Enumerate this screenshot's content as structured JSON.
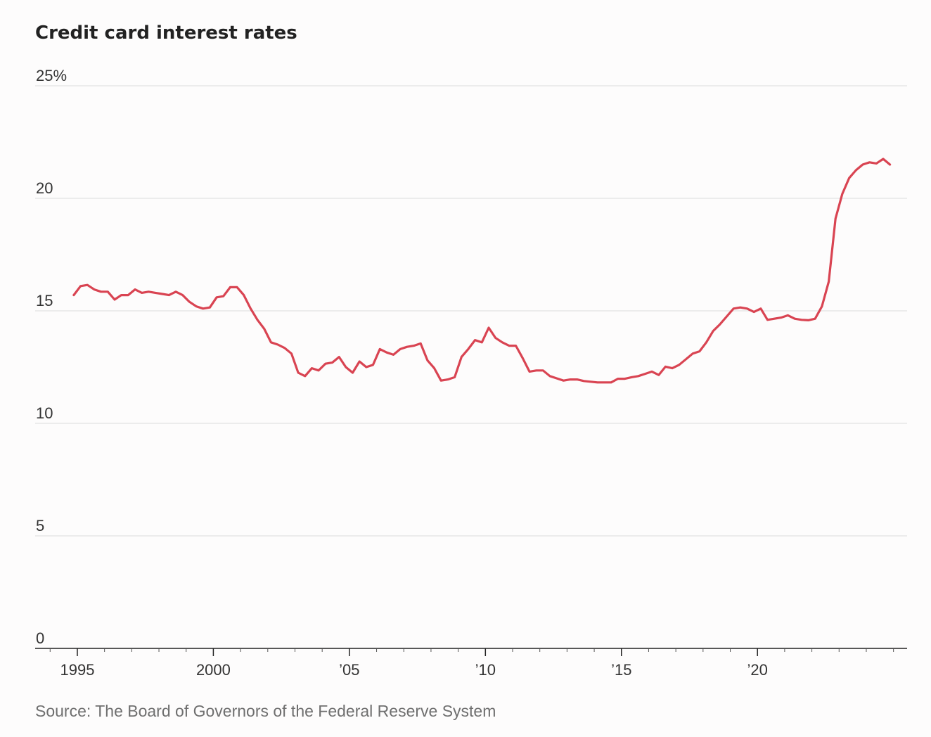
{
  "chart_data": {
    "type": "line",
    "title": "Credit card interest rates",
    "xlabel": "",
    "ylabel": "",
    "ylim": [
      0,
      25
    ],
    "xlim": [
      1993.45,
      2025.5
    ],
    "yticks": [
      {
        "value": 25,
        "label": "25%"
      },
      {
        "value": 20,
        "label": "20"
      },
      {
        "value": 15,
        "label": "15"
      },
      {
        "value": 10,
        "label": "10"
      },
      {
        "value": 5,
        "label": "5"
      },
      {
        "value": 0,
        "label": "0"
      }
    ],
    "xticks": [
      {
        "value": 1995,
        "label": "1995"
      },
      {
        "value": 2000,
        "label": "2000"
      },
      {
        "value": 2005,
        "label": "’05"
      },
      {
        "value": 2010,
        "label": "’10"
      },
      {
        "value": 2015,
        "label": "’15"
      },
      {
        "value": 2020,
        "label": "’20"
      }
    ],
    "grid": true,
    "color": "#d94452",
    "series": [
      {
        "x": [
          1994.87,
          1995.12,
          1995.37,
          1995.62,
          1995.87,
          1996.12,
          1996.37,
          1996.62,
          1996.87,
          1997.12,
          1997.37,
          1997.62,
          1997.87,
          1998.12,
          1998.37,
          1998.62,
          1998.87,
          1999.12,
          1999.37,
          1999.62,
          1999.87,
          2000.12,
          2000.37,
          2000.62,
          2000.87,
          2001.12,
          2001.37,
          2001.62,
          2001.87,
          2002.12,
          2002.37,
          2002.62,
          2002.87,
          2003.12,
          2003.37,
          2003.62,
          2003.87,
          2004.12,
          2004.37,
          2004.62,
          2004.87,
          2005.12,
          2005.37,
          2005.62,
          2005.87,
          2006.12,
          2006.37,
          2006.62,
          2006.87,
          2007.12,
          2007.37,
          2007.62,
          2007.87,
          2008.12,
          2008.37,
          2008.62,
          2008.87,
          2009.12,
          2009.37,
          2009.62,
          2009.87,
          2010.12,
          2010.37,
          2010.62,
          2010.87,
          2011.12,
          2011.37,
          2011.62,
          2011.87,
          2012.12,
          2012.37,
          2012.62,
          2012.87,
          2013.12,
          2013.37,
          2013.62,
          2013.87,
          2014.12,
          2014.37,
          2014.62,
          2014.87,
          2015.12,
          2015.37,
          2015.62,
          2015.87,
          2016.12,
          2016.37,
          2016.62,
          2016.87,
          2017.12,
          2017.37,
          2017.62,
          2017.87,
          2018.12,
          2018.37,
          2018.62,
          2018.87,
          2019.12,
          2019.37,
          2019.62,
          2019.87,
          2020.12,
          2020.37,
          2020.62,
          2020.87,
          2021.12,
          2021.37,
          2021.62,
          2021.87,
          2022.12,
          2022.37,
          2022.62,
          2022.87,
          2023.12,
          2023.37,
          2023.62,
          2023.87,
          2024.12,
          2024.37,
          2024.62,
          2024.87
        ],
        "y": [
          15.7,
          16.1,
          16.15,
          15.95,
          15.85,
          15.85,
          15.5,
          15.7,
          15.7,
          15.95,
          15.8,
          15.85,
          15.8,
          15.75,
          15.7,
          15.85,
          15.7,
          15.4,
          15.2,
          15.1,
          15.15,
          15.6,
          15.65,
          16.05,
          16.05,
          15.7,
          15.1,
          14.6,
          14.2,
          13.6,
          13.5,
          13.35,
          13.1,
          12.25,
          12.1,
          12.45,
          12.35,
          12.65,
          12.7,
          12.95,
          12.5,
          12.25,
          12.75,
          12.5,
          12.6,
          13.3,
          13.15,
          13.05,
          13.3,
          13.4,
          13.45,
          13.55,
          12.8,
          12.45,
          11.9,
          11.95,
          12.05,
          12.95,
          13.3,
          13.7,
          13.6,
          14.25,
          13.8,
          13.6,
          13.45,
          13.45,
          12.9,
          12.3,
          12.35,
          12.35,
          12.1,
          12.0,
          11.9,
          11.95,
          11.95,
          11.88,
          11.85,
          11.82,
          11.82,
          11.82,
          11.98,
          11.98,
          12.05,
          12.1,
          12.2,
          12.3,
          12.15,
          12.52,
          12.45,
          12.6,
          12.85,
          13.1,
          13.2,
          13.6,
          14.1,
          14.4,
          14.75,
          15.1,
          15.15,
          15.1,
          14.95,
          15.1,
          14.6,
          14.65,
          14.7,
          14.8,
          14.65,
          14.6,
          14.58,
          14.65,
          15.2,
          16.3,
          19.1,
          20.2,
          20.9,
          21.25,
          21.5,
          21.6,
          21.55,
          21.75,
          21.5
        ]
      }
    ]
  },
  "source": "Source: The Board of Governors of the Federal Reserve System"
}
